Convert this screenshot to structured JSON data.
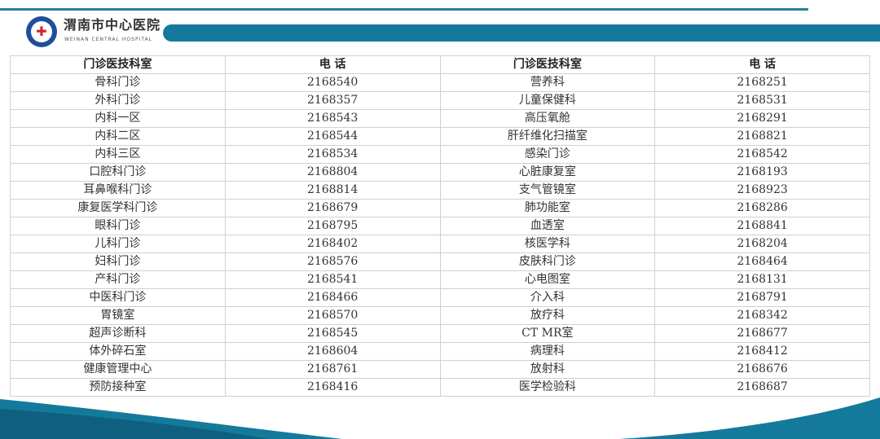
{
  "header": {
    "hospital_name": "渭南市中心医院",
    "hospital_name_en": "WEINAN CENTRAL HOSPITAL",
    "logo_icon": "hospital-emblem"
  },
  "colors": {
    "accent": "#147a9c"
  },
  "table": {
    "headers": [
      "门诊医技科室",
      "电 话",
      "门诊医技科室",
      "电 话"
    ],
    "rows": [
      [
        "骨科门诊",
        "2168540",
        "营养科",
        "2168251"
      ],
      [
        "外科门诊",
        "2168357",
        "儿童保健科",
        "2168531"
      ],
      [
        "内科一区",
        "2168543",
        "高压氧舱",
        "2168291"
      ],
      [
        "内科二区",
        "2168544",
        "肝纤维化扫描室",
        "2168821"
      ],
      [
        "内科三区",
        "2168534",
        "感染门诊",
        "2168542"
      ],
      [
        "口腔科门诊",
        "2168804",
        "心脏康复室",
        "2168193"
      ],
      [
        "耳鼻喉科门诊",
        "2168814",
        "支气管镜室",
        "2168923"
      ],
      [
        "康复医学科门诊",
        "2168679",
        "肺功能室",
        "2168286"
      ],
      [
        "眼科门诊",
        "2168795",
        "血透室",
        "2168841"
      ],
      [
        "儿科门诊",
        "2168402",
        "核医学科",
        "2168204"
      ],
      [
        "妇科门诊",
        "2168576",
        "皮肤科门诊",
        "2168464"
      ],
      [
        "产科门诊",
        "2168541",
        "心电图室",
        "2168131"
      ],
      [
        "中医科门诊",
        "2168466",
        "介入科",
        "2168791"
      ],
      [
        "胃镜室",
        "2168570",
        "放疗科",
        "2168342"
      ],
      [
        "超声诊断科",
        "2168545",
        "CT MR室",
        "2168677"
      ],
      [
        "体外碎石室",
        "2168604",
        "病理科",
        "2168412"
      ],
      [
        "健康管理中心",
        "2168761",
        "放射科",
        "2168676"
      ],
      [
        "预防接种室",
        "2168416",
        "医学检验科",
        "2168687"
      ]
    ]
  }
}
